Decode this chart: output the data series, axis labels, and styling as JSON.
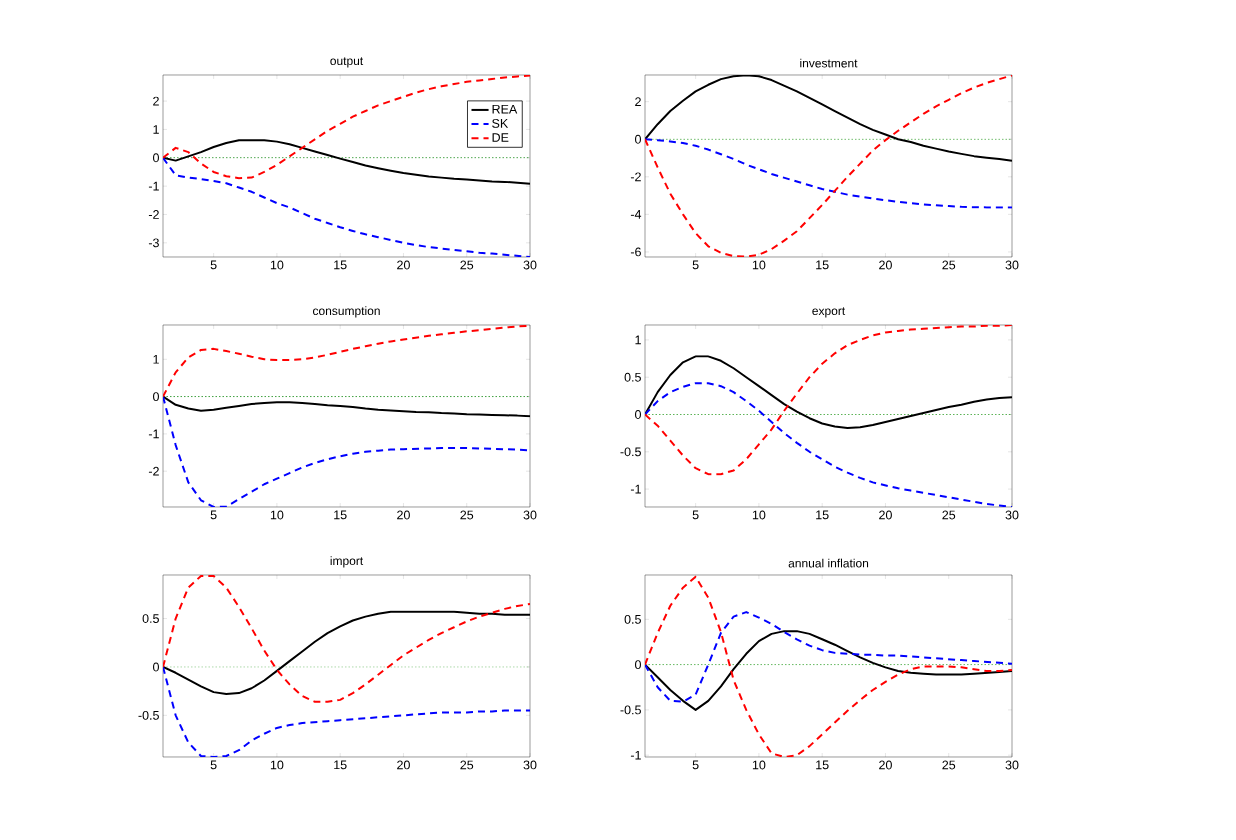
{
  "chart_data": [
    {
      "type": "line",
      "title": "output",
      "x": [
        1,
        2,
        3,
        4,
        5,
        6,
        7,
        8,
        9,
        10,
        11,
        12,
        13,
        14,
        15,
        16,
        17,
        18,
        19,
        20,
        21,
        22,
        23,
        24,
        25,
        26,
        27,
        28,
        29,
        30
      ],
      "xlim": [
        1,
        30
      ],
      "xticks": [
        5,
        10,
        15,
        20,
        25,
        30
      ],
      "ylim": [
        -3.5,
        2.92
      ],
      "yticks": [
        -3,
        -2,
        -1,
        0,
        1,
        2
      ],
      "legend": "top right",
      "marker": "none",
      "ref_lines": [
        {
          "axis": "y",
          "value": 0,
          "color": "#008000",
          "line_style": "dotted"
        }
      ],
      "series": [
        {
          "name": "REA",
          "color": "#000000",
          "line_style": "solid",
          "values": [
            0,
            -0.1,
            0.05,
            0.2,
            0.38,
            0.52,
            0.62,
            0.62,
            0.62,
            0.57,
            0.48,
            0.35,
            0.22,
            0.1,
            -0.03,
            -0.15,
            -0.27,
            -0.37,
            -0.46,
            -0.54,
            -0.6,
            -0.66,
            -0.7,
            -0.74,
            -0.77,
            -0.8,
            -0.84,
            -0.85,
            -0.88,
            -0.92
          ]
        },
        {
          "name": "SK",
          "color": "#0000ff",
          "line_style": "dashed",
          "values": [
            0,
            -0.62,
            -0.7,
            -0.75,
            -0.82,
            -0.9,
            -1.05,
            -1.2,
            -1.4,
            -1.6,
            -1.75,
            -1.95,
            -2.15,
            -2.3,
            -2.45,
            -2.58,
            -2.7,
            -2.8,
            -2.9,
            -3.0,
            -3.08,
            -3.15,
            -3.2,
            -3.25,
            -3.3,
            -3.35,
            -3.38,
            -3.42,
            -3.46,
            -3.5
          ]
        },
        {
          "name": "DE",
          "color": "#ff0000",
          "line_style": "dashed",
          "values": [
            0,
            0.35,
            0.2,
            -0.2,
            -0.5,
            -0.65,
            -0.72,
            -0.7,
            -0.5,
            -0.25,
            0.05,
            0.35,
            0.65,
            0.95,
            1.2,
            1.45,
            1.65,
            1.85,
            2.0,
            2.15,
            2.3,
            2.42,
            2.52,
            2.6,
            2.68,
            2.73,
            2.78,
            2.83,
            2.87,
            2.9
          ]
        }
      ]
    },
    {
      "type": "line",
      "title": "investment",
      "x": [
        1,
        2,
        3,
        4,
        5,
        6,
        7,
        8,
        9,
        10,
        11,
        12,
        13,
        14,
        15,
        16,
        17,
        18,
        19,
        20,
        21,
        22,
        23,
        24,
        25,
        26,
        27,
        28,
        29,
        30
      ],
      "xlim": [
        1,
        30
      ],
      "xticks": [
        5,
        10,
        15,
        20,
        25,
        30
      ],
      "ylim": [
        -6.27,
        3.42
      ],
      "yticks": [
        -6,
        -4,
        -2,
        0,
        2
      ],
      "marker": "none",
      "ref_lines": [
        {
          "axis": "y",
          "value": 0,
          "color": "#33a02c",
          "line_style": "dotted"
        }
      ],
      "series": [
        {
          "color": "#000000",
          "line_style": "solid",
          "values": [
            0,
            0.8,
            1.5,
            2.05,
            2.55,
            2.9,
            3.2,
            3.35,
            3.4,
            3.35,
            3.15,
            2.85,
            2.55,
            2.2,
            1.85,
            1.5,
            1.15,
            0.8,
            0.5,
            0.25,
            0.0,
            -0.15,
            -0.35,
            -0.5,
            -0.65,
            -0.78,
            -0.9,
            -0.98,
            -1.05,
            -1.15
          ]
        },
        {
          "color": "#0000ff",
          "line_style": "dashed",
          "values": [
            0,
            -0.05,
            -0.12,
            -0.2,
            -0.35,
            -0.55,
            -0.8,
            -1.05,
            -1.35,
            -1.6,
            -1.85,
            -2.05,
            -2.25,
            -2.45,
            -2.65,
            -2.8,
            -2.95,
            -3.05,
            -3.15,
            -3.25,
            -3.33,
            -3.4,
            -3.47,
            -3.52,
            -3.56,
            -3.6,
            -3.62,
            -3.63,
            -3.63,
            -3.63
          ]
        },
        {
          "color": "#ff0000",
          "line_style": "dashed",
          "values": [
            0,
            -1.5,
            -2.9,
            -4.0,
            -5.0,
            -5.7,
            -6.05,
            -6.22,
            -6.25,
            -6.15,
            -5.85,
            -5.4,
            -4.9,
            -4.2,
            -3.5,
            -2.75,
            -2.0,
            -1.3,
            -0.6,
            -0.05,
            0.45,
            0.9,
            1.35,
            1.75,
            2.1,
            2.45,
            2.75,
            3.0,
            3.2,
            3.4
          ]
        }
      ]
    },
    {
      "type": "line",
      "title": "consumption",
      "x": [
        1,
        2,
        3,
        4,
        5,
        6,
        7,
        8,
        9,
        10,
        11,
        12,
        13,
        14,
        15,
        16,
        17,
        18,
        19,
        20,
        21,
        22,
        23,
        24,
        25,
        26,
        27,
        28,
        29,
        30
      ],
      "xlim": [
        1,
        30
      ],
      "xticks": [
        5,
        10,
        15,
        20,
        25,
        30
      ],
      "ylim": [
        -2.96,
        1.92
      ],
      "yticks": [
        -2,
        -1,
        0,
        1
      ],
      "marker": "none",
      "ref_lines": [
        {
          "axis": "y",
          "value": 0,
          "color": "#008000",
          "line_style": "dotted"
        }
      ],
      "series": [
        {
          "color": "#000000",
          "line_style": "solid",
          "values": [
            0,
            -0.22,
            -0.32,
            -0.38,
            -0.35,
            -0.3,
            -0.25,
            -0.2,
            -0.17,
            -0.15,
            -0.15,
            -0.17,
            -0.2,
            -0.23,
            -0.25,
            -0.28,
            -0.32,
            -0.35,
            -0.37,
            -0.39,
            -0.41,
            -0.42,
            -0.44,
            -0.45,
            -0.47,
            -0.48,
            -0.49,
            -0.5,
            -0.51,
            -0.53
          ]
        },
        {
          "color": "#0000ff",
          "line_style": "dashed",
          "values": [
            0,
            -1.3,
            -2.3,
            -2.78,
            -2.96,
            -2.95,
            -2.75,
            -2.55,
            -2.35,
            -2.2,
            -2.05,
            -1.9,
            -1.78,
            -1.68,
            -1.6,
            -1.53,
            -1.48,
            -1.45,
            -1.42,
            -1.41,
            -1.4,
            -1.39,
            -1.38,
            -1.38,
            -1.38,
            -1.39,
            -1.4,
            -1.41,
            -1.42,
            -1.44
          ]
        },
        {
          "color": "#ff0000",
          "line_style": "dashed",
          "values": [
            0,
            0.65,
            1.05,
            1.25,
            1.28,
            1.22,
            1.15,
            1.07,
            1.0,
            0.98,
            0.98,
            1.0,
            1.05,
            1.12,
            1.2,
            1.28,
            1.35,
            1.42,
            1.48,
            1.53,
            1.58,
            1.63,
            1.67,
            1.71,
            1.75,
            1.78,
            1.82,
            1.85,
            1.88,
            1.9
          ]
        }
      ]
    },
    {
      "type": "line",
      "title": "export",
      "x": [
        1,
        2,
        3,
        4,
        5,
        6,
        7,
        8,
        9,
        10,
        11,
        12,
        13,
        14,
        15,
        16,
        17,
        18,
        19,
        20,
        21,
        22,
        23,
        24,
        25,
        26,
        27,
        28,
        29,
        30
      ],
      "xlim": [
        1,
        30
      ],
      "xticks": [
        5,
        10,
        15,
        20,
        25,
        30
      ],
      "ylim": [
        -1.24,
        1.2
      ],
      "yticks": [
        -1,
        -0.5,
        0,
        0.5,
        1
      ],
      "marker": "none",
      "ref_lines": [
        {
          "axis": "y",
          "value": 0,
          "color": "#33a02c",
          "line_style": "dotted"
        }
      ],
      "series": [
        {
          "color": "#000000",
          "line_style": "solid",
          "values": [
            0,
            0.3,
            0.53,
            0.7,
            0.78,
            0.78,
            0.72,
            0.62,
            0.5,
            0.38,
            0.26,
            0.14,
            0.04,
            -0.05,
            -0.12,
            -0.16,
            -0.18,
            -0.17,
            -0.14,
            -0.1,
            -0.06,
            -0.02,
            0.02,
            0.06,
            0.1,
            0.13,
            0.17,
            0.2,
            0.22,
            0.23
          ]
        },
        {
          "color": "#0000ff",
          "line_style": "dashed",
          "values": [
            0,
            0.18,
            0.3,
            0.37,
            0.42,
            0.42,
            0.38,
            0.3,
            0.18,
            0.05,
            -0.1,
            -0.25,
            -0.38,
            -0.5,
            -0.6,
            -0.7,
            -0.78,
            -0.85,
            -0.91,
            -0.95,
            -0.99,
            -1.02,
            -1.05,
            -1.08,
            -1.11,
            -1.14,
            -1.17,
            -1.2,
            -1.22,
            -1.24
          ]
        },
        {
          "color": "#ff0000",
          "line_style": "dashed",
          "values": [
            0,
            -0.15,
            -0.35,
            -0.55,
            -0.72,
            -0.8,
            -0.8,
            -0.75,
            -0.6,
            -0.4,
            -0.2,
            0.05,
            0.28,
            0.5,
            0.68,
            0.82,
            0.93,
            1.0,
            1.06,
            1.1,
            1.12,
            1.14,
            1.15,
            1.16,
            1.17,
            1.18,
            1.18,
            1.19,
            1.19,
            1.2
          ]
        }
      ]
    },
    {
      "type": "line",
      "title": "import",
      "x": [
        1,
        2,
        3,
        4,
        5,
        6,
        7,
        8,
        9,
        10,
        11,
        12,
        13,
        14,
        15,
        16,
        17,
        18,
        19,
        20,
        21,
        22,
        23,
        24,
        25,
        26,
        27,
        28,
        29,
        30
      ],
      "xlim": [
        1,
        30
      ],
      "xticks": [
        5,
        10,
        15,
        20,
        25,
        30
      ],
      "ylim": [
        -0.93,
        0.95
      ],
      "yticks": [
        -0.5,
        0,
        0.5
      ],
      "marker": "none",
      "ref_lines": [
        {
          "axis": "y",
          "value": 0,
          "color": "#33a02c",
          "line_style": "dotted"
        }
      ],
      "series": [
        {
          "color": "#000000",
          "line_style": "solid",
          "values": [
            0,
            -0.06,
            -0.13,
            -0.2,
            -0.26,
            -0.28,
            -0.27,
            -0.22,
            -0.14,
            -0.04,
            0.06,
            0.16,
            0.26,
            0.35,
            0.42,
            0.48,
            0.52,
            0.55,
            0.57,
            0.57,
            0.57,
            0.57,
            0.57,
            0.57,
            0.56,
            0.55,
            0.55,
            0.54,
            0.54,
            0.54
          ]
        },
        {
          "color": "#0000ff",
          "line_style": "dashed",
          "values": [
            0,
            -0.5,
            -0.78,
            -0.92,
            -0.93,
            -0.92,
            -0.86,
            -0.76,
            -0.69,
            -0.63,
            -0.6,
            -0.58,
            -0.57,
            -0.56,
            -0.55,
            -0.54,
            -0.53,
            -0.52,
            -0.51,
            -0.5,
            -0.49,
            -0.48,
            -0.47,
            -0.47,
            -0.47,
            -0.46,
            -0.46,
            -0.45,
            -0.45,
            -0.45
          ]
        },
        {
          "color": "#ff0000",
          "line_style": "dashed",
          "values": [
            0,
            0.5,
            0.82,
            0.94,
            0.94,
            0.82,
            0.62,
            0.4,
            0.17,
            -0.03,
            -0.18,
            -0.3,
            -0.36,
            -0.36,
            -0.34,
            -0.27,
            -0.18,
            -0.08,
            0.02,
            0.12,
            0.2,
            0.28,
            0.35,
            0.41,
            0.47,
            0.52,
            0.56,
            0.6,
            0.63,
            0.65
          ]
        }
      ]
    },
    {
      "type": "line",
      "title": "annual inflation",
      "x": [
        1,
        2,
        3,
        4,
        5,
        6,
        7,
        8,
        9,
        10,
        11,
        12,
        13,
        14,
        15,
        16,
        17,
        18,
        19,
        20,
        21,
        22,
        23,
        24,
        25,
        26,
        27,
        28,
        29,
        30
      ],
      "xlim": [
        1,
        30
      ],
      "xticks": [
        5,
        10,
        15,
        20,
        25,
        30
      ],
      "ylim": [
        -1.02,
        0.99
      ],
      "yticks": [
        -1,
        -0.5,
        0,
        0.5
      ],
      "marker": "none",
      "ref_lines": [
        {
          "axis": "y",
          "value": 0,
          "color": "#33a02c",
          "line_style": "dotted"
        }
      ],
      "series": [
        {
          "color": "#000000",
          "line_style": "solid",
          "values": [
            0,
            -0.14,
            -0.28,
            -0.4,
            -0.5,
            -0.4,
            -0.24,
            -0.05,
            0.12,
            0.26,
            0.34,
            0.37,
            0.37,
            0.34,
            0.28,
            0.22,
            0.15,
            0.08,
            0.02,
            -0.03,
            -0.07,
            -0.09,
            -0.1,
            -0.11,
            -0.11,
            -0.11,
            -0.1,
            -0.09,
            -0.08,
            -0.07
          ]
        },
        {
          "color": "#0000ff",
          "line_style": "dashed",
          "values": [
            0,
            -0.25,
            -0.4,
            -0.41,
            -0.33,
            0.0,
            0.35,
            0.53,
            0.58,
            0.52,
            0.45,
            0.36,
            0.28,
            0.21,
            0.16,
            0.13,
            0.12,
            0.11,
            0.11,
            0.1,
            0.1,
            0.09,
            0.08,
            0.07,
            0.06,
            0.05,
            0.04,
            0.03,
            0.02,
            0.01
          ]
        },
        {
          "color": "#ff0000",
          "line_style": "dashed",
          "values": [
            0,
            0.35,
            0.65,
            0.85,
            0.97,
            0.74,
            0.36,
            -0.17,
            -0.5,
            -0.77,
            -0.98,
            -1.02,
            -1.0,
            -0.9,
            -0.77,
            -0.64,
            -0.51,
            -0.39,
            -0.28,
            -0.19,
            -0.11,
            -0.05,
            -0.02,
            -0.02,
            -0.02,
            -0.03,
            -0.05,
            -0.07,
            -0.07,
            -0.06
          ]
        }
      ]
    }
  ]
}
